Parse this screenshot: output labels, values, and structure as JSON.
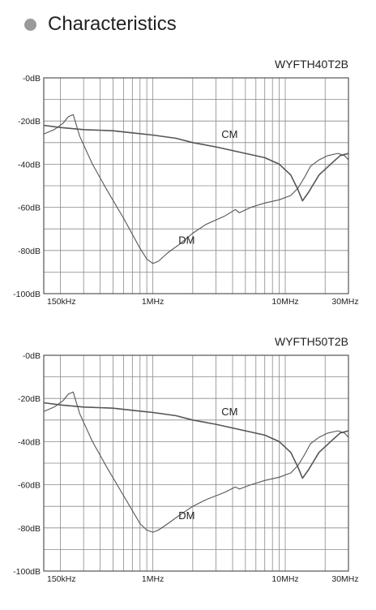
{
  "header": {
    "title": "Characteristics"
  },
  "chart_data": [
    {
      "type": "line",
      "title": "WYFTH40T2B",
      "xscale": "log",
      "xlim_hz": [
        150000,
        30000000
      ],
      "ylim": [
        -100,
        0
      ],
      "grid": true,
      "x_ticks": [
        {
          "value": 150000,
          "label": "150kHz"
        },
        {
          "value": 1000000,
          "label": "1MHz"
        },
        {
          "value": 10000000,
          "label": "10MHz"
        },
        {
          "value": 30000000,
          "label": "30MHz"
        }
      ],
      "y_ticks": [
        {
          "value": 0,
          "label": "-0dB"
        },
        {
          "value": -20,
          "label": "-20dB"
        },
        {
          "value": -40,
          "label": "-40dB"
        },
        {
          "value": -60,
          "label": "-60dB"
        },
        {
          "value": -80,
          "label": "-80dB"
        },
        {
          "value": -100,
          "label": "-100dB"
        }
      ],
      "series": [
        {
          "name": "CM",
          "x": [
            150000,
            200000,
            300000,
            500000,
            700000,
            1000000,
            1500000,
            2000000,
            3000000,
            5000000,
            7000000,
            9000000,
            11000000,
            12500000,
            13500000,
            15000000,
            18000000,
            22000000,
            26000000,
            30000000
          ],
          "y": [
            -22,
            -23,
            -24,
            -24.5,
            -25.5,
            -26.5,
            -28,
            -30,
            -32,
            -35,
            -37,
            -40,
            -45,
            -52,
            -57,
            -53,
            -45,
            -40,
            -36,
            -35
          ]
        },
        {
          "name": "DM",
          "x": [
            150000,
            180000,
            210000,
            230000,
            250000,
            280000,
            350000,
            450000,
            600000,
            800000,
            900000,
            1000000,
            1100000,
            1300000,
            1600000,
            2000000,
            2500000,
            3500000,
            4200000,
            4500000,
            5500000,
            7000000,
            9000000,
            11000000,
            12500000,
            14000000,
            15500000,
            18000000,
            21000000,
            25000000,
            28000000,
            30000000
          ],
          "y": [
            -26,
            -24,
            -21,
            -18,
            -17,
            -27,
            -40,
            -52,
            -65,
            -79,
            -84,
            -86,
            -85,
            -81,
            -77,
            -72,
            -68,
            -64,
            -61,
            -62.5,
            -60,
            -58,
            -56.5,
            -54.5,
            -51,
            -46,
            -41,
            -38,
            -36,
            -35,
            -36,
            -38
          ]
        }
      ],
      "annotations": [
        {
          "text": "CM",
          "x": 3800000,
          "y": -26
        },
        {
          "text": "DM",
          "x": 1800000,
          "y": -75
        }
      ]
    },
    {
      "type": "line",
      "title": "WYFTH50T2B",
      "xscale": "log",
      "xlim_hz": [
        150000,
        30000000
      ],
      "ylim": [
        -100,
        0
      ],
      "grid": true,
      "x_ticks": [
        {
          "value": 150000,
          "label": "150kHz"
        },
        {
          "value": 1000000,
          "label": "1MHz"
        },
        {
          "value": 10000000,
          "label": "10MHz"
        },
        {
          "value": 30000000,
          "label": "30MHz"
        }
      ],
      "y_ticks": [
        {
          "value": 0,
          "label": "-0dB"
        },
        {
          "value": -20,
          "label": "-20dB"
        },
        {
          "value": -40,
          "label": "-40dB"
        },
        {
          "value": -60,
          "label": "-60dB"
        },
        {
          "value": -80,
          "label": "-80dB"
        },
        {
          "value": -100,
          "label": "-100dB"
        }
      ],
      "series": [
        {
          "name": "CM",
          "x": [
            150000,
            200000,
            300000,
            500000,
            700000,
            1000000,
            1500000,
            2000000,
            3000000,
            5000000,
            7000000,
            9000000,
            11000000,
            12500000,
            13500000,
            15000000,
            18000000,
            22000000,
            26000000,
            30000000
          ],
          "y": [
            -22,
            -23,
            -24,
            -24.5,
            -25.5,
            -26.5,
            -28,
            -30,
            -32,
            -35,
            -37,
            -40,
            -45,
            -52,
            -57,
            -53,
            -45,
            -40,
            -36,
            -35
          ]
        },
        {
          "name": "DM",
          "x": [
            150000,
            180000,
            210000,
            230000,
            250000,
            280000,
            350000,
            450000,
            600000,
            800000,
            900000,
            1000000,
            1100000,
            1300000,
            1600000,
            2000000,
            2500000,
            3500000,
            4200000,
            4500000,
            5500000,
            7000000,
            9000000,
            11000000,
            12500000,
            14000000,
            15500000,
            18000000,
            21000000,
            25000000,
            28000000,
            30000000
          ],
          "y": [
            -26,
            -24,
            -21,
            -18,
            -17,
            -27,
            -40,
            -52,
            -65,
            -78,
            -81,
            -82,
            -81,
            -78,
            -74,
            -70,
            -67,
            -63.5,
            -61,
            -62,
            -60,
            -58,
            -56.5,
            -54.5,
            -51,
            -46,
            -41,
            -38,
            -36,
            -35,
            -36,
            -38
          ]
        }
      ],
      "annotations": [
        {
          "text": "CM",
          "x": 3800000,
          "y": -26
        },
        {
          "text": "DM",
          "x": 1800000,
          "y": -74
        }
      ]
    }
  ]
}
